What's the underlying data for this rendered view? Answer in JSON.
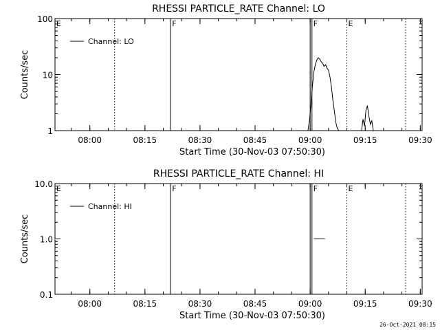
{
  "footer_stamp": "26-Oct-2021 08:15",
  "chart_data": [
    {
      "type": "line",
      "title": "RHESSI PARTICLE_RATE Channel: LO",
      "xlabel": "Start Time (30-Nov-03 07:50:30)",
      "ylabel": "Counts/sec",
      "y_scale": "log",
      "ylim": [
        1,
        100
      ],
      "y_ticks": [
        "1",
        "10",
        "100"
      ],
      "x_range_minutes_from_start": [
        0,
        100
      ],
      "x_tick_labels": [
        "08:00",
        "08:15",
        "08:30",
        "08:45",
        "09:00",
        "09:15",
        "09:30"
      ],
      "legend": "Channel: LO",
      "legend_placement": "top-left",
      "markers": [
        {
          "time": "07:50:30",
          "label": "E",
          "style": "solid"
        },
        {
          "time": "08:06:45",
          "label": "",
          "style": "dotted"
        },
        {
          "time": "08:22:00",
          "label": "F",
          "style": "solid"
        },
        {
          "time": "09:00:00",
          "label": "",
          "style": "solid"
        },
        {
          "time": "09:00:30",
          "label": "F",
          "style": "solid"
        },
        {
          "time": "09:10:00",
          "label": "E",
          "style": "dotted"
        },
        {
          "time": "09:26:00",
          "label": "",
          "style": "dotted"
        }
      ],
      "series": [
        {
          "name": "Channel: LO",
          "segments": [
            {
              "x": [
                "08:59:24",
                "08:59:48",
                "09:00:12",
                "09:00:36",
                "09:01:00",
                "09:01:24",
                "09:01:48",
                "09:02:12",
                "09:02:36",
                "09:03:00",
                "09:03:24",
                "09:03:48",
                "09:04:12",
                "09:04:36",
                "09:05:00",
                "09:05:24",
                "09:05:48",
                "09:06:12",
                "09:06:36",
                "09:07:00",
                "09:07:24",
                "09:07:48"
              ],
              "y": [
                1,
                1.5,
                2.8,
                6,
                11,
                15,
                18,
                20,
                19,
                17,
                16,
                14,
                15,
                13,
                12,
                9,
                6,
                3.5,
                2.2,
                1.4,
                1.1,
                1
              ]
            },
            {
              "x": [
                "09:14:00",
                "09:14:24",
                "09:14:48",
                "09:15:12",
                "09:15:36",
                "09:16:00",
                "09:16:24",
                "09:16:48",
                "09:17:12"
              ],
              "y": [
                1,
                1.6,
                1.2,
                2.3,
                2.8,
                1.8,
                1.3,
                1.5,
                1
              ]
            }
          ]
        }
      ]
    },
    {
      "type": "line",
      "title": "RHESSI PARTICLE_RATE Channel: HI",
      "xlabel": "Start Time (30-Nov-03 07:50:30)",
      "ylabel": "Counts/sec",
      "y_scale": "log",
      "ylim": [
        0.1,
        10
      ],
      "y_ticks": [
        "0.1",
        "1.0",
        "10.0"
      ],
      "x_range_minutes_from_start": [
        0,
        100
      ],
      "x_tick_labels": [
        "08:00",
        "08:15",
        "08:30",
        "08:45",
        "09:00",
        "09:15",
        "09:30"
      ],
      "legend": "Channel: HI",
      "legend_placement": "top-left",
      "markers": [
        {
          "time": "07:50:30",
          "label": "E",
          "style": "solid"
        },
        {
          "time": "08:06:45",
          "label": "",
          "style": "dotted"
        },
        {
          "time": "08:22:00",
          "label": "F",
          "style": "solid"
        },
        {
          "time": "09:00:00",
          "label": "",
          "style": "solid"
        },
        {
          "time": "09:00:30",
          "label": "F",
          "style": "solid"
        },
        {
          "time": "09:10:00",
          "label": "E",
          "style": "dotted"
        },
        {
          "time": "09:26:00",
          "label": "",
          "style": "dotted"
        }
      ],
      "series": [
        {
          "name": "Channel: HI",
          "segments": [
            {
              "x": [
                "09:01:00",
                "09:04:00"
              ],
              "y": [
                1,
                1
              ]
            }
          ]
        }
      ]
    }
  ]
}
